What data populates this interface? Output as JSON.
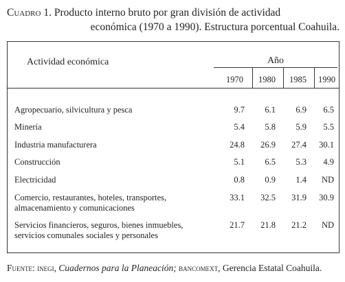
{
  "caption": {
    "prefix": "Cuadro 1.",
    "line1": "Producto interno bruto por gran división de actividad",
    "line2": "económica (1970 a 1990). Estructura porcentual Coahuila."
  },
  "table": {
    "header_activity": "Actividad económica",
    "header_year": "Año",
    "years": [
      "1970",
      "1980",
      "1985",
      "1990"
    ],
    "rows": [
      {
        "label": [
          "Agropecuario, silvicultura y pesca"
        ],
        "values": [
          "9.7",
          "6.1",
          "6.9",
          "6.5"
        ]
      },
      {
        "label": [
          "Minería"
        ],
        "values": [
          "5.4",
          "5.8",
          "5.9",
          "5.5"
        ]
      },
      {
        "label": [
          "Industria manufacturera"
        ],
        "values": [
          "24.8",
          "26.9",
          "27.4",
          "30.1"
        ]
      },
      {
        "label": [
          "Construcción"
        ],
        "values": [
          "5.1",
          "6.5",
          "5.3",
          "4.9"
        ]
      },
      {
        "label": [
          "Electricidad"
        ],
        "values": [
          "0.8",
          "0.9",
          "1.4",
          "ND"
        ]
      },
      {
        "label": [
          "Comercio, restaurantes, hoteles, transportes,",
          "almacenamiento y comunicaciones"
        ],
        "values": [
          "33.1",
          "32.5",
          "31.9",
          "30.9"
        ]
      },
      {
        "label": [
          "Servicios financieros, seguros, bienes inmuebles,",
          "servicios comunales sociales y personales"
        ],
        "values": [
          "21.7",
          "21.8",
          "21.2",
          "ND"
        ]
      }
    ]
  },
  "footer": {
    "label": "Fuente:",
    "org": "inegi,",
    "title": "Cuadernos para la Planeación;",
    "org2": "bancomext,",
    "rest": "Gerencia Estatal Coahuila."
  }
}
